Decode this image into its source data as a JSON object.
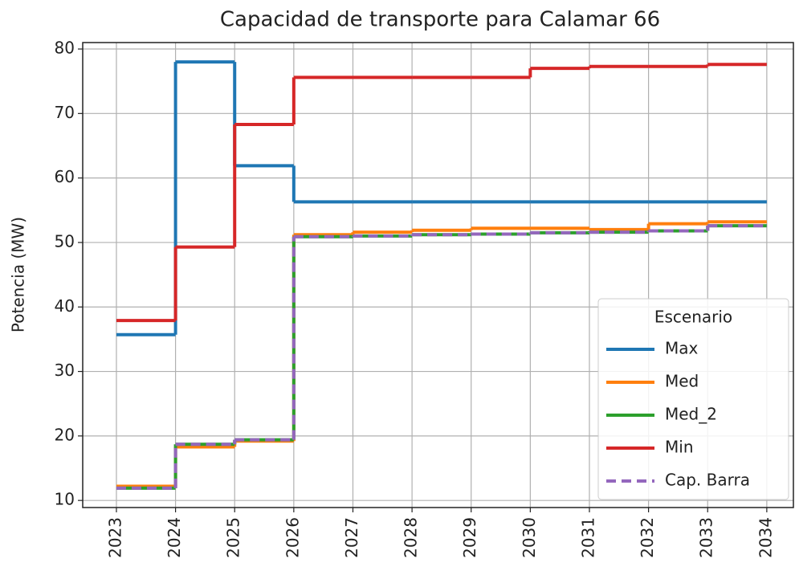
{
  "chart_data": {
    "type": "step",
    "title": "Capacidad de transporte para Calamar 66",
    "ylabel": "Potencia (MW)",
    "x": [
      2023,
      2024,
      2025,
      2026,
      2027,
      2028,
      2029,
      2030,
      2031,
      2032,
      2033,
      2034
    ],
    "series": [
      {
        "name": "Max",
        "color": "#1f77b4",
        "dashed": false,
        "values": [
          35.7,
          78.0,
          61.9,
          56.3,
          56.3,
          56.3,
          56.3,
          56.3,
          56.3,
          56.3,
          56.3,
          56.3
        ]
      },
      {
        "name": "Med",
        "color": "#ff7f0e",
        "dashed": false,
        "values": [
          12.2,
          18.3,
          19.2,
          51.2,
          51.6,
          51.9,
          52.2,
          52.2,
          52.0,
          52.9,
          53.2,
          53.2
        ]
      },
      {
        "name": "Med_2",
        "color": "#2ca02c",
        "dashed": false,
        "values": [
          11.9,
          18.7,
          19.4,
          50.9,
          51.0,
          51.2,
          51.3,
          51.5,
          51.6,
          51.8,
          52.6,
          52.6
        ]
      },
      {
        "name": "Min",
        "color": "#d62728",
        "dashed": false,
        "values": [
          37.9,
          49.3,
          68.3,
          75.6,
          75.6,
          75.6,
          75.6,
          77.0,
          77.3,
          77.3,
          77.6,
          77.6
        ]
      },
      {
        "name": "Cap. Barra",
        "color": "#9467bd",
        "dashed": true,
        "values": [
          11.9,
          18.7,
          19.4,
          50.9,
          51.0,
          51.2,
          51.3,
          51.5,
          51.6,
          51.8,
          52.6,
          52.6
        ]
      }
    ],
    "xlim": [
      2022.43,
      2034.45
    ],
    "ylim": [
      8.9,
      81.0
    ],
    "xticks": [
      2023,
      2024,
      2025,
      2026,
      2027,
      2028,
      2029,
      2030,
      2031,
      2032,
      2033,
      2034
    ],
    "yticks": [
      10,
      20,
      30,
      40,
      50,
      60,
      70,
      80
    ],
    "grid": true,
    "legend_title": "Escenario",
    "legend_position": "lower right"
  }
}
